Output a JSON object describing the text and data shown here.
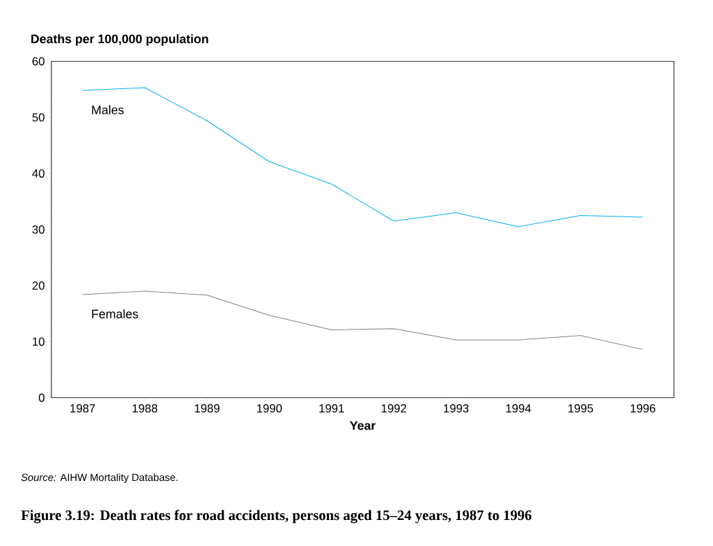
{
  "chart_data": {
    "type": "line",
    "title": "Figure 3.19: Death rates for road accidents, persons aged 15–24 years, 1987 to 1996",
    "ylabel": "Deaths per 100,000 population",
    "xlabel": "Year",
    "annotations": [
      "*Source:* AIHW Mortality Database."
    ],
    "x": [
      1987,
      1988,
      1989,
      1990,
      1991,
      1992,
      1993,
      1994,
      1995,
      1996
    ],
    "series": [
      {
        "name": "Males",
        "color": "#00aeef",
        "values": [
          54.8,
          55.3,
          49.4,
          42.1,
          38.1,
          31.5,
          33.0,
          30.5,
          32.5,
          32.2
        ]
      },
      {
        "name": "Females",
        "color": "#808080",
        "values": [
          18.4,
          19.0,
          18.3,
          14.7,
          12.1,
          12.3,
          10.3,
          10.3,
          11.1,
          8.6
        ]
      }
    ],
    "xlim": [
      1986.5,
      1996.5
    ],
    "xticks": [
      1987,
      1988,
      1989,
      1990,
      1991,
      1992,
      1993,
      1994,
      1995,
      1996
    ],
    "ylim": [
      0,
      60
    ],
    "yticks": [
      0,
      10,
      20,
      30,
      40,
      50,
      60
    ],
    "grid": false,
    "legend": false,
    "marker": "none",
    "line_style": "solid"
  }
}
